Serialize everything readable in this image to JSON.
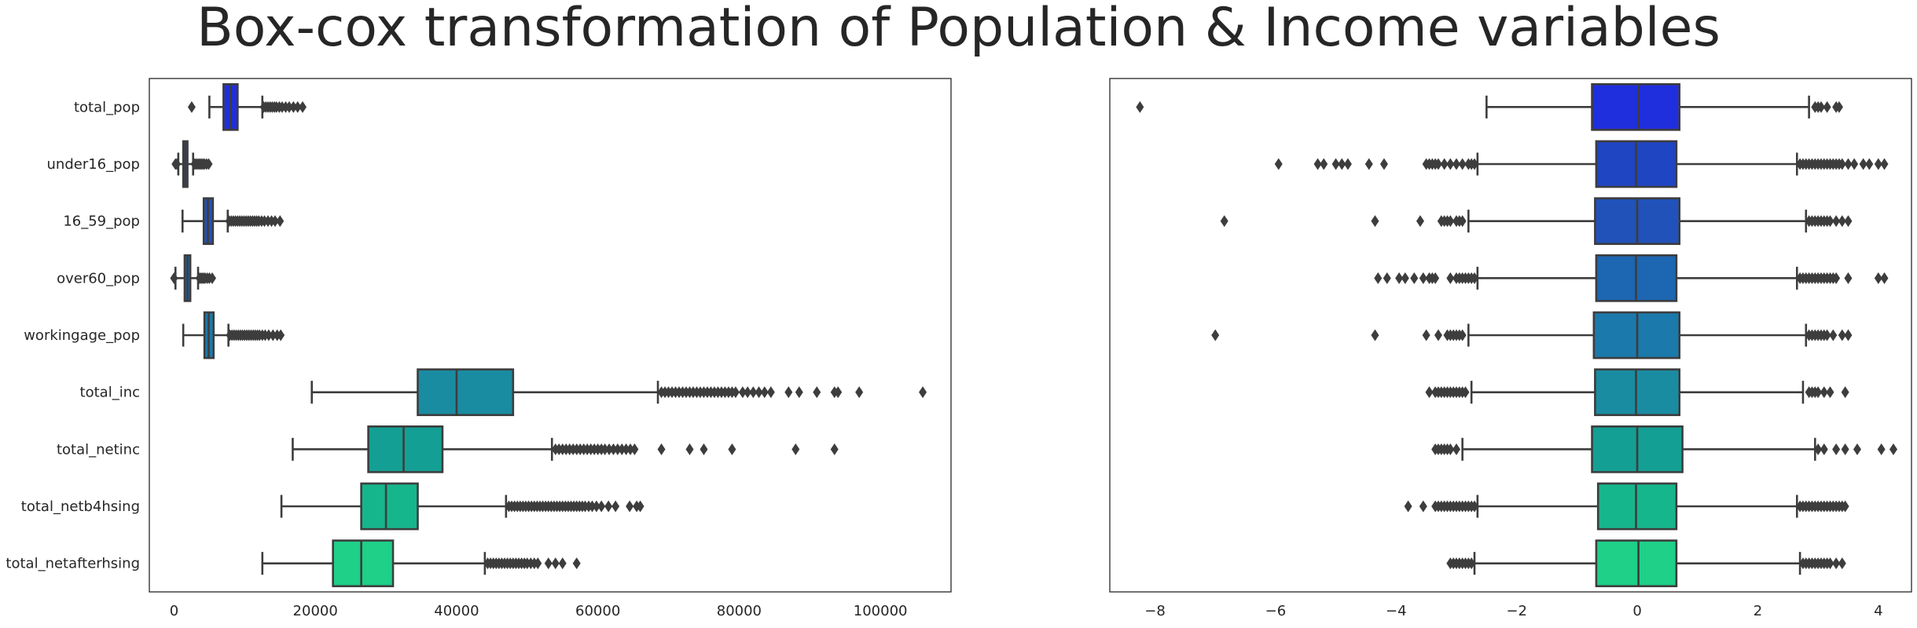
{
  "chart_data": {
    "title": "Box-cox transformation of Population & Income variables",
    "type": "box",
    "categories": [
      "total_pop",
      "under16_pop",
      "16_59_pop",
      "over60_pop",
      "workingage_pop",
      "total_inc",
      "total_netinc",
      "total_netb4hsing",
      "total_netafterhsing"
    ],
    "colors": [
      "#1f2fde",
      "#2045c3",
      "#2152ba",
      "#1d66b2",
      "#1b79ab",
      "#1a8ca2",
      "#149f94",
      "#16b68c",
      "#1ed088"
    ],
    "edge_color": "#3d3d3d",
    "panels": [
      {
        "name": "raw",
        "xlim": [
          -3500,
          110000
        ],
        "xticks": [
          0,
          20000,
          40000,
          60000,
          80000,
          100000
        ],
        "boxes": [
          {
            "q1": 7000,
            "median": 8000,
            "q3": 9000,
            "whislo": 5000,
            "whishi": 12500,
            "fliers": [
              2500,
              12700,
              13000,
              13300,
              13600,
              13900,
              14200,
              14500,
              14900,
              15300,
              15800,
              16300,
              16900,
              17500,
              18200
            ]
          },
          {
            "q1": 1300,
            "median": 1600,
            "q3": 1900,
            "whislo": 600,
            "whishi": 2700,
            "fliers": [
              200,
              400,
              2900,
              3100,
              3300,
              3500,
              3700,
              3900,
              4100,
              4300,
              4600,
              4900
            ]
          },
          {
            "q1": 4200,
            "median": 4800,
            "q3": 5500,
            "whislo": 1200,
            "whishi": 7600,
            "fliers": [
              7800,
              8100,
              8400,
              8700,
              9000,
              9300,
              9600,
              9900,
              10200,
              10500,
              10800,
              11100,
              11400,
              11700,
              12000,
              12400,
              12800,
              13300,
              13800,
              14300,
              15000
            ]
          },
          {
            "q1": 1500,
            "median": 1900,
            "q3": 2300,
            "whislo": 200,
            "whishi": 3400,
            "fliers": [
              0,
              3600,
              3800,
              4000,
              4200,
              4400,
              4700,
              5000,
              5400
            ]
          },
          {
            "q1": 4300,
            "median": 4900,
            "q3": 5600,
            "whislo": 1300,
            "whishi": 7700,
            "fliers": [
              7900,
              8200,
              8500,
              8800,
              9100,
              9400,
              9700,
              10000,
              10300,
              10600,
              10900,
              11200,
              11500,
              11800,
              12100,
              12500,
              12900,
              13400,
              14000,
              14600,
              15100
            ]
          },
          {
            "q1": 34500,
            "median": 40000,
            "q3": 48000,
            "whislo": 19500,
            "whishi": 68500,
            "fliers": [
              69000,
              69500,
              70000,
              70500,
              71000,
              71500,
              72000,
              72500,
              73000,
              73500,
              74000,
              74500,
              75000,
              75500,
              76000,
              76500,
              77000,
              77500,
              78000,
              78500,
              79000,
              79500,
              80500,
              81200,
              82000,
              82800,
              83600,
              84500,
              87000,
              88500,
              91000,
              93500,
              94000,
              97000,
              106000
            ]
          },
          {
            "q1": 27500,
            "median": 32500,
            "q3": 38000,
            "whislo": 16800,
            "whishi": 53500,
            "fliers": [
              54000,
              54500,
              55000,
              55500,
              56000,
              56500,
              57000,
              57500,
              58000,
              58500,
              59000,
              59500,
              60000,
              60500,
              61000,
              61600,
              62200,
              62800,
              63400,
              64000,
              64600,
              65200,
              69000,
              73000,
              75000,
              79000,
              88000,
              93500
            ]
          },
          {
            "q1": 26500,
            "median": 30000,
            "q3": 34500,
            "whislo": 15200,
            "whishi": 47000,
            "fliers": [
              47400,
              47800,
              48200,
              48600,
              49000,
              49400,
              49800,
              50200,
              50600,
              51000,
              51400,
              51800,
              52200,
              52600,
              53000,
              53400,
              53800,
              54200,
              54600,
              55000,
              55400,
              55800,
              56200,
              56600,
              57000,
              57400,
              57800,
              58200,
              58700,
              59200,
              59800,
              60500,
              61500,
              62500,
              64500,
              65500,
              66000
            ]
          },
          {
            "q1": 22500,
            "median": 26500,
            "q3": 31000,
            "whislo": 12500,
            "whishi": 44000,
            "fliers": [
              44400,
              44800,
              45200,
              45600,
              46000,
              46400,
              46800,
              47200,
              47600,
              48000,
              48400,
              48800,
              49200,
              49600,
              50000,
              50500,
              51000,
              51500,
              53000,
              54000,
              55000,
              57000
            ]
          }
        ]
      },
      {
        "name": "boxcox",
        "xlim": [
          -8.75,
          4.55
        ],
        "xticks": [
          -8,
          -6,
          -4,
          -2,
          0,
          2,
          4
        ],
        "boxes": [
          {
            "q1": -0.75,
            "median": 0.02,
            "q3": 0.7,
            "whislo": -2.5,
            "whishi": 2.85,
            "fliers": [
              -8.25,
              2.95,
              3.0,
              3.05,
              3.15,
              3.3,
              3.35
            ]
          },
          {
            "q1": -0.68,
            "median": -0.02,
            "q3": 0.65,
            "whislo": -2.65,
            "whishi": 2.65,
            "fliers": [
              -5.95,
              -5.3,
              -5.2,
              -5.0,
              -4.9,
              -4.8,
              -4.45,
              -4.2,
              -3.5,
              -3.45,
              -3.4,
              -3.35,
              -3.3,
              -3.2,
              -3.1,
              -3.0,
              -2.9,
              -2.8,
              -2.75,
              -2.7,
              2.7,
              2.75,
              2.8,
              2.85,
              2.9,
              2.95,
              3.0,
              3.05,
              3.1,
              3.15,
              3.2,
              3.25,
              3.3,
              3.35,
              3.4,
              3.5,
              3.6,
              3.75,
              3.85,
              4.0,
              4.1
            ]
          },
          {
            "q1": -0.7,
            "median": 0.0,
            "q3": 0.7,
            "whislo": -2.8,
            "whishi": 2.8,
            "fliers": [
              -6.85,
              -4.35,
              -3.6,
              -3.25,
              -3.2,
              -3.15,
              -3.1,
              -3.0,
              -2.95,
              -2.9,
              2.85,
              2.9,
              2.95,
              3.0,
              3.05,
              3.1,
              3.15,
              3.2,
              3.3,
              3.4,
              3.5
            ]
          },
          {
            "q1": -0.68,
            "median": -0.02,
            "q3": 0.65,
            "whislo": -2.65,
            "whishi": 2.65,
            "fliers": [
              -4.3,
              -4.15,
              -3.95,
              -3.85,
              -3.7,
              -3.55,
              -3.45,
              -3.4,
              -3.35,
              -3.1,
              -3.0,
              -2.95,
              -2.9,
              -2.85,
              -2.8,
              -2.75,
              -2.7,
              2.7,
              2.75,
              2.8,
              2.85,
              2.9,
              2.95,
              3.0,
              3.05,
              3.1,
              3.15,
              3.2,
              3.25,
              3.3,
              3.5,
              4.0,
              4.1
            ]
          },
          {
            "q1": -0.72,
            "median": 0.0,
            "q3": 0.7,
            "whislo": -2.8,
            "whishi": 2.8,
            "fliers": [
              -7.0,
              -4.35,
              -3.5,
              -3.3,
              -3.15,
              -3.1,
              -3.05,
              -3.0,
              -2.95,
              -2.9,
              2.85,
              2.9,
              2.95,
              3.0,
              3.05,
              3.1,
              3.15,
              3.25,
              3.4,
              3.5
            ]
          },
          {
            "q1": -0.7,
            "median": -0.02,
            "q3": 0.7,
            "whislo": -2.75,
            "whishi": 2.75,
            "fliers": [
              -3.45,
              -3.35,
              -3.3,
              -3.25,
              -3.2,
              -3.15,
              -3.1,
              -3.05,
              -3.0,
              -2.95,
              -2.9,
              -2.85,
              2.85,
              2.9,
              2.95,
              3.0,
              3.1,
              3.2,
              3.45
            ]
          },
          {
            "q1": -0.75,
            "median": 0.0,
            "q3": 0.75,
            "whislo": -2.9,
            "whishi": 2.95,
            "fliers": [
              -3.35,
              -3.3,
              -3.25,
              -3.2,
              -3.15,
              -3.1,
              -3.0,
              3.0,
              3.1,
              3.3,
              3.45,
              3.65,
              4.05,
              4.25
            ]
          },
          {
            "q1": -0.65,
            "median": -0.02,
            "q3": 0.65,
            "whislo": -2.65,
            "whishi": 2.65,
            "fliers": [
              -3.8,
              -3.55,
              -3.35,
              -3.3,
              -3.25,
              -3.2,
              -3.15,
              -3.1,
              -3.05,
              -3.0,
              -2.95,
              -2.9,
              -2.85,
              -2.8,
              -2.75,
              -2.7,
              2.7,
              2.75,
              2.8,
              2.85,
              2.9,
              2.95,
              3.0,
              3.05,
              3.1,
              3.15,
              3.2,
              3.25,
              3.3,
              3.35,
              3.4,
              3.45
            ]
          },
          {
            "q1": -0.68,
            "median": 0.02,
            "q3": 0.65,
            "whislo": -2.7,
            "whishi": 2.7,
            "fliers": [
              -3.1,
              -3.05,
              -3.0,
              -2.95,
              -2.9,
              -2.85,
              -2.8,
              -2.75,
              2.75,
              2.8,
              2.85,
              2.9,
              2.95,
              3.0,
              3.05,
              3.1,
              3.15,
              3.2,
              3.3,
              3.4
            ]
          }
        ]
      }
    ]
  }
}
